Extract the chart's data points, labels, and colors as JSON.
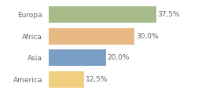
{
  "categories": [
    "Europa",
    "Africa",
    "Asia",
    "America"
  ],
  "values": [
    37.5,
    30.0,
    20.0,
    12.5
  ],
  "bar_colors": [
    "#a8bc8a",
    "#e8b882",
    "#7b9fc4",
    "#f0d080"
  ],
  "labels": [
    "37,5%",
    "30,0%",
    "20,0%",
    "12,5%"
  ],
  "xlim": [
    0,
    46
  ],
  "background_color": "#ffffff",
  "label_fontsize": 6.5,
  "category_fontsize": 6.5,
  "bar_height": 0.78,
  "grid_color": "#dddddd",
  "text_color": "#666666"
}
